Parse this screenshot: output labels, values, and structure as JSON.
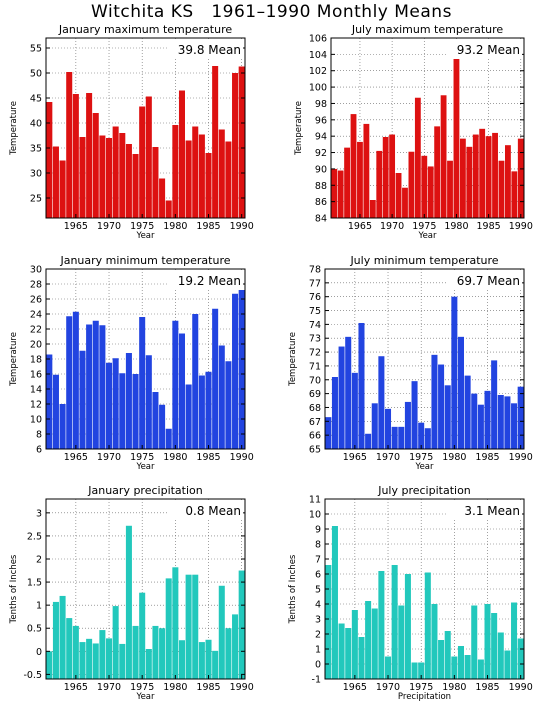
{
  "title": "Witchita KS   1961–1990 Monthly Means",
  "colors": {
    "red": "#dd1111",
    "blue": "#2244e0",
    "teal": "#22c8bc"
  },
  "chart_data": [
    {
      "type": "bar",
      "title": "January maximum temperature",
      "xlabel": "Year",
      "ylabel": "Temperature",
      "mean_label": "39.8 Mean",
      "color": "red",
      "x": [
        1961,
        1962,
        1963,
        1964,
        1965,
        1966,
        1967,
        1968,
        1969,
        1970,
        1971,
        1972,
        1973,
        1974,
        1975,
        1976,
        1977,
        1978,
        1979,
        1980,
        1981,
        1982,
        1983,
        1984,
        1985,
        1986,
        1987,
        1988,
        1989,
        1990
      ],
      "values": [
        44.2,
        35.3,
        32.5,
        50.2,
        45.8,
        37.2,
        46.0,
        42.0,
        37.5,
        37.0,
        39.3,
        38.0,
        35.8,
        33.8,
        43.3,
        45.3,
        35.2,
        28.9,
        24.5,
        39.6,
        46.5,
        36.5,
        39.3,
        37.7,
        34.0,
        51.4,
        38.7,
        36.3,
        50.0,
        51.3
      ],
      "ylim": [
        21,
        57
      ],
      "yticks": [
        25,
        30,
        35,
        40,
        45,
        50,
        55
      ],
      "xlim": [
        1960.5,
        1990.5
      ],
      "xticks": [
        1965,
        1970,
        1975,
        1980,
        1985,
        1990
      ]
    },
    {
      "type": "bar",
      "title": "July maximum temperature",
      "xlabel": "Year",
      "ylabel": "Temperature",
      "mean_label": "93.2 Mean",
      "color": "red",
      "x": [
        1961,
        1962,
        1963,
        1964,
        1965,
        1966,
        1967,
        1968,
        1969,
        1970,
        1971,
        1972,
        1973,
        1974,
        1975,
        1976,
        1977,
        1978,
        1979,
        1980,
        1981,
        1982,
        1983,
        1984,
        1985,
        1986,
        1987,
        1988,
        1989,
        1990
      ],
      "values": [
        90.0,
        89.8,
        92.6,
        96.7,
        93.3,
        95.5,
        86.2,
        92.2,
        93.9,
        94.2,
        89.5,
        87.7,
        92.1,
        98.7,
        91.6,
        90.3,
        95.2,
        99.0,
        91.0,
        104.8,
        93.7,
        92.7,
        94.2,
        94.9,
        94.0,
        94.4,
        91.0,
        92.9,
        89.7,
        93.7
      ],
      "ylim": [
        84,
        106
      ],
      "yticks": [
        84,
        86,
        88,
        90,
        92,
        94,
        96,
        98,
        100,
        102,
        104,
        106
      ],
      "xlim": [
        1960.5,
        1990.5
      ],
      "xticks": [
        1965,
        1970,
        1975,
        1980,
        1985,
        1990
      ]
    },
    {
      "type": "bar",
      "title": "January minimum temperature",
      "xlabel": "Year",
      "ylabel": "Temperature",
      "mean_label": "19.2 Mean",
      "color": "blue",
      "x": [
        1961,
        1962,
        1963,
        1964,
        1965,
        1966,
        1967,
        1968,
        1969,
        1970,
        1971,
        1972,
        1973,
        1974,
        1975,
        1976,
        1977,
        1978,
        1979,
        1980,
        1981,
        1982,
        1983,
        1984,
        1985,
        1986,
        1987,
        1988,
        1989,
        1990
      ],
      "values": [
        18.6,
        15.9,
        12.0,
        23.7,
        24.3,
        19.1,
        22.6,
        23.1,
        22.5,
        17.5,
        18.1,
        16.1,
        18.8,
        16.0,
        23.6,
        18.5,
        13.6,
        11.9,
        8.7,
        23.1,
        21.4,
        14.6,
        24.0,
        15.8,
        16.3,
        24.7,
        19.8,
        17.7,
        26.7,
        27.2
      ],
      "ylim": [
        6,
        30
      ],
      "yticks": [
        6,
        8,
        10,
        12,
        14,
        16,
        18,
        20,
        22,
        24,
        26,
        28,
        30
      ],
      "xlim": [
        1960.5,
        1990.5
      ],
      "xticks": [
        1965,
        1970,
        1975,
        1980,
        1985,
        1990
      ]
    },
    {
      "type": "bar",
      "title": "July minimum temperature",
      "xlabel": "Year",
      "ylabel": "Temperature",
      "mean_label": "69.7 Mean",
      "color": "blue",
      "x": [
        1961,
        1962,
        1963,
        1964,
        1965,
        1966,
        1967,
        1968,
        1969,
        1970,
        1971,
        1972,
        1973,
        1974,
        1975,
        1976,
        1977,
        1978,
        1979,
        1980,
        1981,
        1982,
        1983,
        1984,
        1985,
        1986,
        1987,
        1988,
        1989,
        1990
      ],
      "values": [
        67.3,
        70.2,
        72.4,
        73.1,
        70.5,
        74.1,
        66.1,
        68.3,
        71.7,
        67.9,
        66.6,
        66.6,
        68.4,
        69.9,
        66.9,
        66.5,
        71.8,
        71.1,
        69.6,
        76.0,
        73.1,
        70.3,
        69.0,
        68.2,
        69.2,
        71.4,
        68.9,
        68.8,
        68.3,
        69.5
      ],
      "ylim": [
        65,
        78
      ],
      "yticks": [
        65,
        66,
        67,
        68,
        69,
        70,
        71,
        72,
        73,
        74,
        75,
        76,
        77,
        78
      ],
      "xlim": [
        1960.5,
        1990.5
      ],
      "xticks": [
        1965,
        1970,
        1975,
        1980,
        1985,
        1990
      ]
    },
    {
      "type": "bar",
      "title": "January precipitation",
      "xlabel": "Year",
      "ylabel": "Tenths of Inches",
      "mean_label": "0.8 Mean",
      "color": "teal",
      "x": [
        1961,
        1962,
        1963,
        1964,
        1965,
        1966,
        1967,
        1968,
        1969,
        1970,
        1971,
        1972,
        1973,
        1974,
        1975,
        1976,
        1977,
        1978,
        1979,
        1980,
        1981,
        1982,
        1983,
        1984,
        1985,
        1986,
        1987,
        1988,
        1989,
        1990
      ],
      "values": [
        0.0,
        1.07,
        1.2,
        0.72,
        0.55,
        0.2,
        0.27,
        0.17,
        0.46,
        0.28,
        0.98,
        0.16,
        2.72,
        0.55,
        1.27,
        0.05,
        0.55,
        0.5,
        1.58,
        1.82,
        0.24,
        1.66,
        1.66,
        0.2,
        0.25,
        0.01,
        1.42,
        0.5,
        0.8,
        1.75
      ],
      "ylim": [
        -0.6,
        3.3
      ],
      "yticks": [
        -0.5,
        0,
        0.5,
        1,
        1.5,
        2,
        2.5,
        3
      ],
      "xlim": [
        1960.5,
        1990.5
      ],
      "xticks": [
        1965,
        1970,
        1975,
        1980,
        1985,
        1990
      ]
    },
    {
      "type": "bar",
      "title": "July precipitation",
      "xlabel": "Precipitation",
      "ylabel": "Tenths of Inches",
      "mean_label": "3.1 Mean",
      "color": "teal",
      "x": [
        1961,
        1962,
        1963,
        1964,
        1965,
        1966,
        1967,
        1968,
        1969,
        1970,
        1971,
        1972,
        1973,
        1974,
        1975,
        1976,
        1977,
        1978,
        1979,
        1980,
        1981,
        1982,
        1983,
        1984,
        1985,
        1986,
        1987,
        1988,
        1989,
        1990
      ],
      "values": [
        6.6,
        9.2,
        2.7,
        2.4,
        3.6,
        1.8,
        4.2,
        3.7,
        6.2,
        0.5,
        6.6,
        3.9,
        6.0,
        0.1,
        0.1,
        6.1,
        4.0,
        1.6,
        2.2,
        0.5,
        1.2,
        0.6,
        3.9,
        0.3,
        4.0,
        3.4,
        2.1,
        0.9,
        4.1,
        1.7
      ],
      "ylim": [
        -1,
        11
      ],
      "yticks": [
        -1,
        0,
        1,
        2,
        3,
        4,
        5,
        6,
        7,
        8,
        9,
        10,
        11
      ],
      "xlim": [
        1960.5,
        1990.5
      ],
      "xticks": [
        1965,
        1970,
        1975,
        1980,
        1985,
        1990
      ]
    }
  ]
}
